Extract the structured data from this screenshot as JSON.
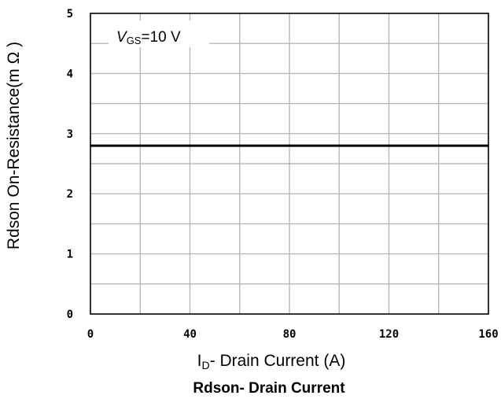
{
  "chart_data": {
    "type": "line",
    "title": "Rdson- Drain Current",
    "xlabel_main": "I",
    "xlabel_sub": "D",
    "xlabel_rest": "- Drain Current (A)",
    "ylabel": "Rdson On-Resistance(m Ω )",
    "annotation_main": "V",
    "annotation_sub": "GS",
    "annotation_rest": "=10 V",
    "xlim": [
      0,
      160
    ],
    "ylim": [
      0,
      5
    ],
    "x_ticks": [
      "0",
      "40",
      "80",
      "120",
      "160"
    ],
    "y_ticks": [
      "0",
      "1",
      "2",
      "3",
      "4",
      "5"
    ],
    "grid": true,
    "series": [
      {
        "x": [
          0,
          40,
          80,
          120,
          160
        ],
        "values": [
          2.8,
          2.8,
          2.8,
          2.8,
          2.8
        ]
      }
    ]
  }
}
